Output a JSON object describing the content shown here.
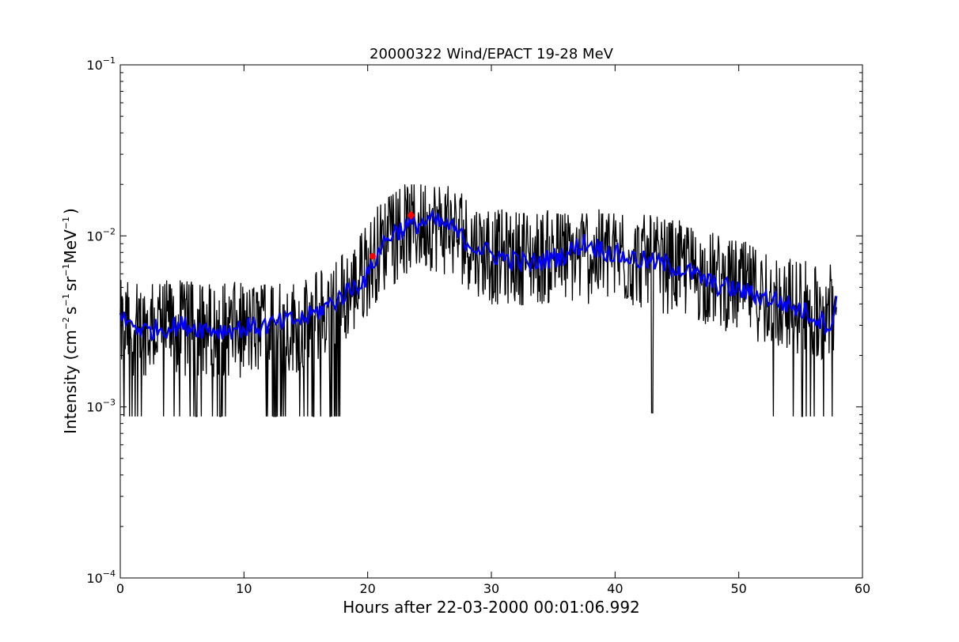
{
  "chart_data": {
    "type": "line",
    "title": "20000322 Wind/EPACT 19-28 MeV",
    "xlabel": "Hours after 22-03-2000 00:01:06.992",
    "ylabel": {
      "prefix": "Intensity (cm",
      "exp1": "−2",
      "s": "s",
      "exp2": "−1",
      "sr": "sr",
      "exp3": "−1",
      "mev": "MeV",
      "exp4": "−1",
      "suffix": ")"
    },
    "xlim": [
      0,
      60
    ],
    "ylim": [
      0.0001,
      0.1
    ],
    "yscale": "log",
    "grid": false,
    "x_ticks": [
      {
        "value": 0,
        "label": "0"
      },
      {
        "value": 10,
        "label": "10"
      },
      {
        "value": 20,
        "label": "20"
      },
      {
        "value": 30,
        "label": "30"
      },
      {
        "value": 40,
        "label": "40"
      },
      {
        "value": 50,
        "label": "50"
      },
      {
        "value": 60,
        "label": "60"
      }
    ],
    "y_ticks": [
      {
        "value": 0.0001,
        "base": "10",
        "exp": "−4"
      },
      {
        "value": 0.001,
        "base": "10",
        "exp": "−3"
      },
      {
        "value": 0.01,
        "base": "10",
        "exp": "−2"
      },
      {
        "value": 0.1,
        "base": "10",
        "exp": "−1"
      }
    ],
    "series": [
      {
        "color": "#000000",
        "description": "raw intensity, noisy, plotted at ~0.05 h cadence",
        "x_range": [
          0,
          57.9
        ],
        "floor": 0.00088,
        "profile": [
          [
            0,
            0.0029
          ],
          [
            5,
            0.0029
          ],
          [
            10,
            0.0028
          ],
          [
            15,
            0.003
          ],
          [
            17,
            0.0038
          ],
          [
            19,
            0.005
          ],
          [
            21,
            0.0085
          ],
          [
            23,
            0.011
          ],
          [
            25,
            0.012
          ],
          [
            27,
            0.0105
          ],
          [
            30,
            0.0075
          ],
          [
            35,
            0.0075
          ],
          [
            40,
            0.0075
          ],
          [
            45,
            0.0065
          ],
          [
            50,
            0.005
          ],
          [
            55,
            0.0038
          ],
          [
            57.9,
            0.0035
          ]
        ],
        "peak_max": 0.02
      },
      {
        "color": "#0000ff",
        "description": "smoothed intensity",
        "profile": [
          [
            0,
            0.0033
          ],
          [
            2,
            0.0028
          ],
          [
            5,
            0.003
          ],
          [
            8,
            0.0028
          ],
          [
            10,
            0.0029
          ],
          [
            12,
            0.003
          ],
          [
            15,
            0.0033
          ],
          [
            17,
            0.004
          ],
          [
            18.5,
            0.0048
          ],
          [
            20,
            0.0058
          ],
          [
            21,
            0.0085
          ],
          [
            22,
            0.0105
          ],
          [
            23.5,
            0.0115
          ],
          [
            25,
            0.0122
          ],
          [
            26.5,
            0.0115
          ],
          [
            28,
            0.0092
          ],
          [
            30,
            0.0078
          ],
          [
            33,
            0.0068
          ],
          [
            36,
            0.0078
          ],
          [
            37.5,
            0.0092
          ],
          [
            40,
            0.0078
          ],
          [
            42,
            0.0072
          ],
          [
            45,
            0.0066
          ],
          [
            48,
            0.0052
          ],
          [
            50,
            0.0048
          ],
          [
            53,
            0.0042
          ],
          [
            55,
            0.0037
          ],
          [
            57.5,
            0.003
          ],
          [
            57.9,
            0.004
          ]
        ]
      }
    ],
    "markers": [
      {
        "x": 20.4,
        "y": 0.0076,
        "color": "#ff0000",
        "kind": "dot"
      },
      {
        "x": 23.5,
        "y": 0.0132,
        "color": "#ff0000",
        "kind": "diamond"
      }
    ]
  }
}
